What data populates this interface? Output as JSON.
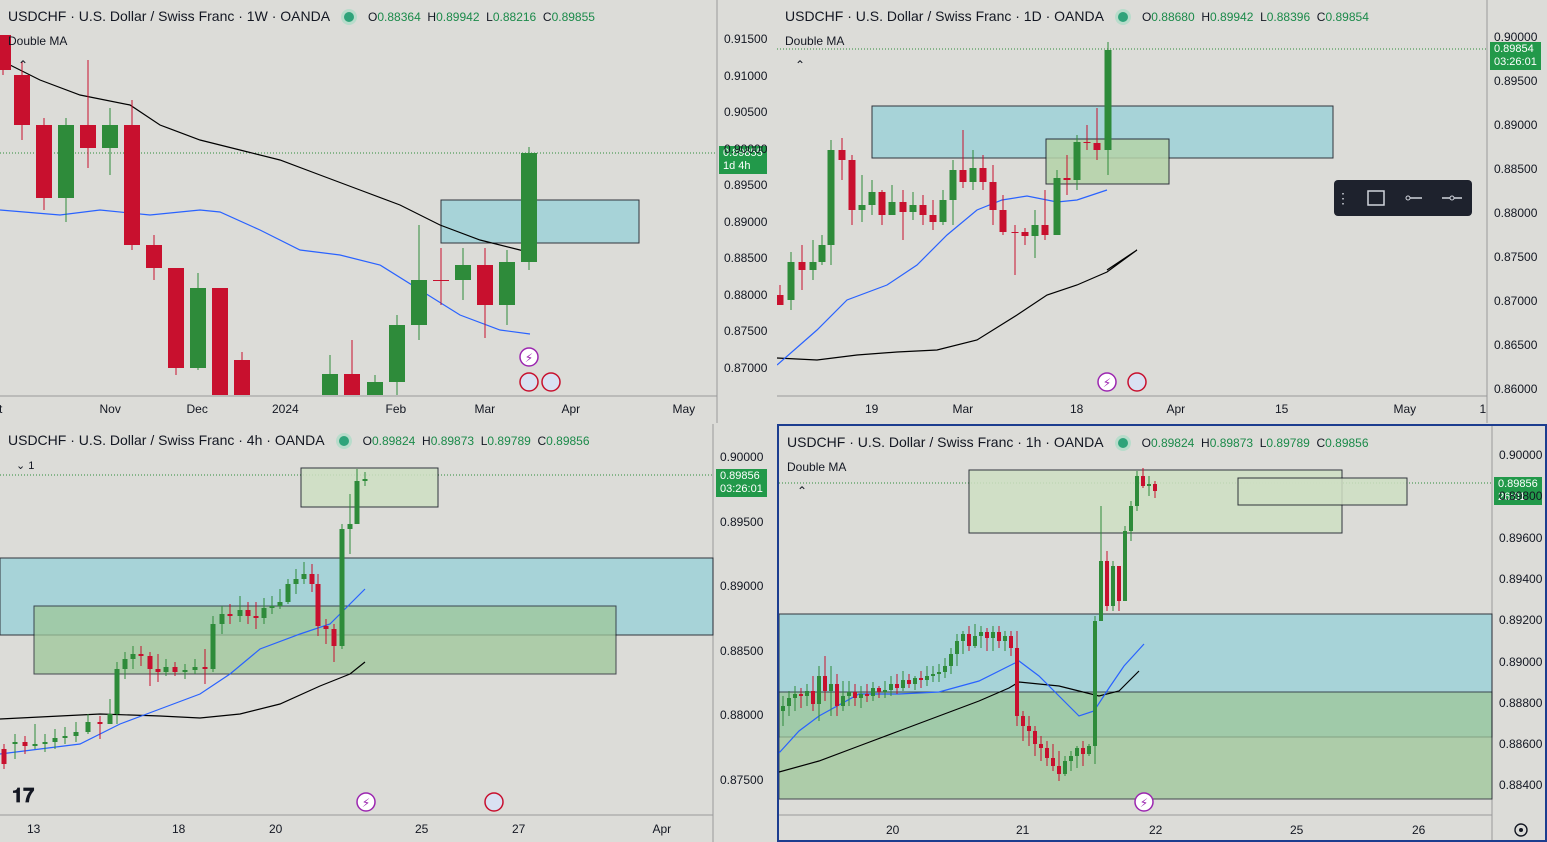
{
  "panels": [
    {
      "id": "weekly",
      "symbol": "USDCHF · U.S. Dollar / Swiss Franc · 1W · OANDA",
      "open": "0.88364",
      "high": "0.89942",
      "low": "0.88216",
      "close": "0.89855",
      "indicator": "Double MA",
      "price_tag": [
        "0.89855",
        "1d 4h"
      ],
      "price_axis": [
        "0.91500",
        "0.91000",
        "0.90500",
        "0.90000",
        "0.89500",
        "0.89000",
        "0.88500",
        "0.88000",
        "0.87500",
        "0.87000"
      ],
      "time_axis": [
        "ct",
        "Nov",
        "Dec",
        "2024",
        "Feb",
        "Mar",
        "Apr",
        "May"
      ],
      "ylim": [
        0.8665,
        0.9175
      ]
    },
    {
      "id": "daily",
      "symbol": "USDCHF · U.S. Dollar / Swiss Franc · 1D · OANDA",
      "open": "0.88680",
      "high": "0.89942",
      "low": "0.88396",
      "close": "0.89854",
      "indicator": "Double MA",
      "price_tag": [
        "0.89854",
        "03:26:01"
      ],
      "price_axis": [
        "0.90000",
        "0.89500",
        "0.89000",
        "0.88500",
        "0.88000",
        "0.87500",
        "0.87000",
        "0.86500",
        "0.86000"
      ],
      "time_axis": [
        "19",
        "Mar",
        "18",
        "Apr",
        "15",
        "May",
        "1"
      ],
      "ylim": [
        0.8595,
        0.9025
      ]
    },
    {
      "id": "h4",
      "symbol": "USDCHF · U.S. Dollar / Swiss Franc · 4h · OANDA",
      "open": "0.89824",
      "high": "0.89873",
      "low": "0.89789",
      "close": "0.89856",
      "indicator_count": "1",
      "price_tag": [
        "0.89856",
        "03:26:01"
      ],
      "price_axis": [
        "0.90000",
        "0.89500",
        "0.89000",
        "0.88500",
        "0.88000",
        "0.87500"
      ],
      "time_axis": [
        "13",
        "18",
        "20",
        "25",
        "27",
        "Apr"
      ],
      "ylim": [
        0.8735,
        0.9005
      ]
    },
    {
      "id": "h1",
      "symbol": "USDCHF · U.S. Dollar / Swiss Franc · 1h · OANDA",
      "open": "0.89824",
      "high": "0.89873",
      "low": "0.89789",
      "close": "0.89856",
      "indicator": "Double MA",
      "price_tag": [
        "0.89856",
        "26:01"
      ],
      "price_axis": [
        "0.90000",
        "0.89800",
        "0.89600",
        "0.89400",
        "0.89200",
        "0.89000",
        "0.88800",
        "0.88600",
        "0.88400"
      ],
      "time_axis": [
        "20",
        "21",
        "22",
        "25",
        "26"
      ],
      "ylim": [
        0.8833,
        0.9006
      ]
    }
  ],
  "colors": {
    "up": "#2e8b3a",
    "down": "#c8102e",
    "ma_fast": "#2962ff",
    "ma_slow": "#000000",
    "zone_blue": "#9ed2d8",
    "zone_green": "#b5d3a8",
    "tag": "#22994a"
  },
  "icons": [
    "lightning-icon",
    "us-flag-icon",
    "tradingview-logo",
    "drawing-toolbar"
  ]
}
